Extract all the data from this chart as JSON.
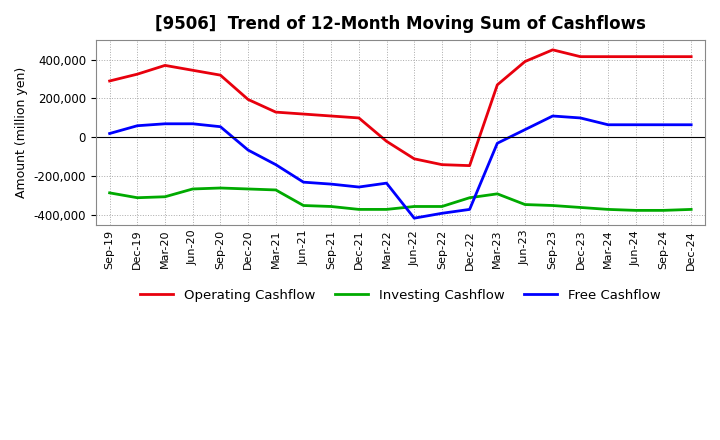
{
  "title": "[9506]  Trend of 12-Month Moving Sum of Cashflows",
  "ylabel": "Amount (million yen)",
  "x_labels": [
    "Sep-19",
    "Dec-19",
    "Mar-20",
    "Jun-20",
    "Sep-20",
    "Dec-20",
    "Mar-21",
    "Jun-21",
    "Sep-21",
    "Dec-21",
    "Mar-22",
    "Jun-22",
    "Sep-22",
    "Dec-22",
    "Mar-23",
    "Jun-23",
    "Sep-23",
    "Dec-23",
    "Mar-24",
    "Jun-24",
    "Sep-24",
    "Dec-24"
  ],
  "operating_cf": [
    290000,
    325000,
    370000,
    345000,
    320000,
    195000,
    130000,
    120000,
    110000,
    100000,
    -20000,
    -110000,
    -140000,
    -145000,
    270000,
    390000,
    450000,
    415000,
    415000,
    415000,
    415000,
    415000
  ],
  "investing_cf": [
    -285000,
    -310000,
    -305000,
    -265000,
    -260000,
    -265000,
    -270000,
    -350000,
    -355000,
    -370000,
    -370000,
    -355000,
    -355000,
    -310000,
    -290000,
    -345000,
    -350000,
    -360000,
    -370000,
    -375000,
    -375000,
    -370000
  ],
  "free_cf": [
    20000,
    60000,
    70000,
    70000,
    55000,
    -65000,
    -140000,
    -230000,
    -240000,
    -255000,
    -235000,
    -415000,
    -390000,
    -370000,
    -30000,
    40000,
    110000,
    100000,
    65000,
    65000,
    65000,
    65000
  ],
  "ylim": [
    -450000,
    500000
  ],
  "yticks": [
    -400000,
    -200000,
    0,
    200000,
    400000
  ],
  "color_operating": "#e8000d",
  "color_investing": "#00aa00",
  "color_free": "#0000ff",
  "background_color": "#ffffff",
  "grid_color": "#aaaaaa",
  "legend_labels": [
    "Operating Cashflow",
    "Investing Cashflow",
    "Free Cashflow"
  ]
}
